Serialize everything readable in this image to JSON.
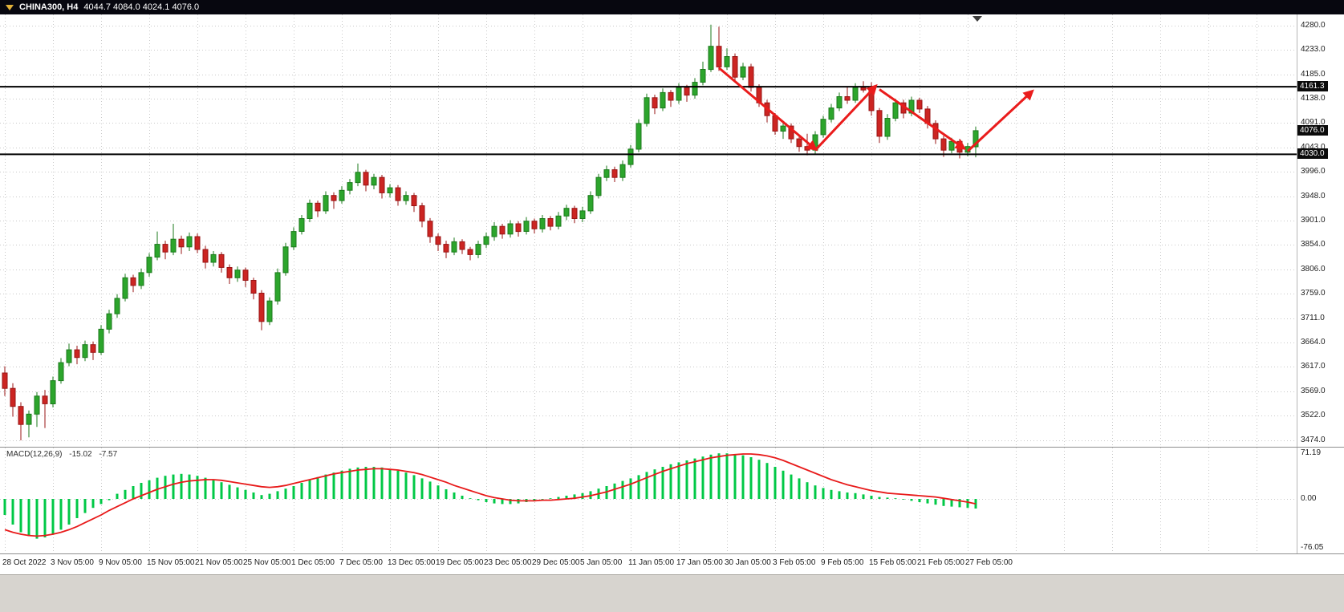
{
  "ui": {
    "titlebar": {
      "symbol": "CHINA300, H4",
      "ohlc": "4044.7 4084.0 4024.1 4076.0"
    },
    "macd": {
      "name": "MACD(12,26,9)",
      "main": "-15.02",
      "signal": "-7.57"
    }
  },
  "chart_data": {
    "type": "candlestick",
    "title": "CHINA300, H4",
    "timeframe": "H4",
    "last_candle": {
      "open": 4044.7,
      "high": 4084.0,
      "low": 4024.1,
      "close": 4076.0
    },
    "style": {
      "up": "#2ca52c",
      "up_border": "#1b7a1b",
      "down": "#cc2522",
      "down_border": "#991414",
      "grid": "#c9c9c9",
      "arrow": "#ea1c1c",
      "hline": "#000000"
    },
    "price_axis": {
      "max": 4280.0,
      "min": 3474.0,
      "ticks": [
        "4280.0",
        "4233.0",
        "4185.0",
        "4138.0",
        "4091.0",
        "4043.0",
        "3996.0",
        "3948.0",
        "3901.0",
        "3854.0",
        "3806.0",
        "3759.0",
        "3711.0",
        "3664.0",
        "3617.0",
        "3569.0",
        "3522.0",
        "3474.0"
      ]
    },
    "price_tags": [
      {
        "price": 4161.3,
        "label": "4161.3"
      },
      {
        "price": 4076.0,
        "label": "4076.0"
      },
      {
        "price": 4030.0,
        "label": "4030.0"
      }
    ],
    "hlines": [
      {
        "price": 4161.3
      },
      {
        "price": 4030.0
      }
    ],
    "trend_arrows": [
      {
        "from": {
          "i": 89,
          "price": 4198
        },
        "to": {
          "i": 101,
          "price": 4040
        }
      },
      {
        "from": {
          "i": 101,
          "price": 4038
        },
        "to": {
          "i": 108.5,
          "price": 4162
        }
      },
      {
        "from": {
          "i": 109,
          "price": 4156
        },
        "to": {
          "i": 119.5,
          "price": 4042
        }
      },
      {
        "from": {
          "i": 120,
          "price": 4036
        },
        "to": {
          "i": 128,
          "price": 4152
        }
      }
    ],
    "time_labels": [
      "28 Oct 2022",
      "3 Nov 05:00",
      "9 Nov 05:00",
      "15 Nov 05:00",
      "21 Nov 05:00",
      "25 Nov 05:00",
      "1 Dec 05:00",
      "7 Dec 05:00",
      "13 Dec 05:00",
      "19 Dec 05:00",
      "23 Dec 05:00",
      "29 Dec 05:00",
      "5 Jan 05:00",
      "11 Jan 05:00",
      "17 Jan 05:00",
      "30 Jan 05:00",
      "3 Feb 05:00",
      "9 Feb 05:00",
      "15 Feb 05:00",
      "21 Feb 05:00",
      "27 Feb 05:00"
    ],
    "candles_ohlc": [
      [
        3605,
        3618,
        3560,
        3575
      ],
      [
        3575,
        3585,
        3520,
        3540
      ],
      [
        3540,
        3548,
        3474,
        3505
      ],
      [
        3505,
        3532,
        3480,
        3525
      ],
      [
        3525,
        3568,
        3500,
        3560
      ],
      [
        3560,
        3572,
        3498,
        3545
      ],
      [
        3545,
        3598,
        3538,
        3590
      ],
      [
        3590,
        3634,
        3584,
        3625
      ],
      [
        3625,
        3662,
        3618,
        3650
      ],
      [
        3650,
        3658,
        3622,
        3635
      ],
      [
        3635,
        3668,
        3628,
        3660
      ],
      [
        3660,
        3666,
        3630,
        3645
      ],
      [
        3645,
        3698,
        3640,
        3690
      ],
      [
        3690,
        3728,
        3682,
        3720
      ],
      [
        3720,
        3758,
        3712,
        3750
      ],
      [
        3750,
        3798,
        3744,
        3790
      ],
      [
        3790,
        3796,
        3762,
        3775
      ],
      [
        3775,
        3808,
        3768,
        3800
      ],
      [
        3800,
        3838,
        3792,
        3830
      ],
      [
        3830,
        3880,
        3824,
        3855
      ],
      [
        3855,
        3862,
        3826,
        3840
      ],
      [
        3840,
        3895,
        3834,
        3865
      ],
      [
        3865,
        3872,
        3836,
        3850
      ],
      [
        3850,
        3878,
        3842,
        3870
      ],
      [
        3870,
        3876,
        3838,
        3845
      ],
      [
        3845,
        3852,
        3808,
        3820
      ],
      [
        3820,
        3842,
        3812,
        3835
      ],
      [
        3835,
        3840,
        3800,
        3810
      ],
      [
        3810,
        3816,
        3778,
        3790
      ],
      [
        3790,
        3812,
        3782,
        3805
      ],
      [
        3805,
        3810,
        3772,
        3785
      ],
      [
        3785,
        3790,
        3748,
        3760
      ],
      [
        3760,
        3766,
        3688,
        3705
      ],
      [
        3705,
        3752,
        3698,
        3745
      ],
      [
        3745,
        3808,
        3738,
        3800
      ],
      [
        3800,
        3858,
        3794,
        3850
      ],
      [
        3850,
        3888,
        3844,
        3880
      ],
      [
        3880,
        3912,
        3874,
        3905
      ],
      [
        3905,
        3942,
        3898,
        3935
      ],
      [
        3935,
        3940,
        3908,
        3920
      ],
      [
        3920,
        3958,
        3914,
        3950
      ],
      [
        3950,
        3956,
        3924,
        3940
      ],
      [
        3940,
        3968,
        3934,
        3960
      ],
      [
        3960,
        3982,
        3952,
        3975
      ],
      [
        3975,
        4012,
        3968,
        3995
      ],
      [
        3995,
        4000,
        3958,
        3970
      ],
      [
        3970,
        3992,
        3962,
        3985
      ],
      [
        3985,
        3990,
        3944,
        3955
      ],
      [
        3955,
        3972,
        3946,
        3965
      ],
      [
        3965,
        3970,
        3930,
        3940
      ],
      [
        3940,
        3958,
        3932,
        3950
      ],
      [
        3950,
        3955,
        3918,
        3930
      ],
      [
        3930,
        3936,
        3888,
        3900
      ],
      [
        3900,
        3906,
        3858,
        3870
      ],
      [
        3870,
        3876,
        3842,
        3855
      ],
      [
        3855,
        3862,
        3828,
        3840
      ],
      [
        3840,
        3868,
        3834,
        3860
      ],
      [
        3860,
        3865,
        3836,
        3845
      ],
      [
        3845,
        3850,
        3824,
        3835
      ],
      [
        3835,
        3862,
        3828,
        3855
      ],
      [
        3855,
        3878,
        3848,
        3870
      ],
      [
        3870,
        3898,
        3862,
        3890
      ],
      [
        3890,
        3895,
        3866,
        3875
      ],
      [
        3875,
        3902,
        3868,
        3895
      ],
      [
        3895,
        3900,
        3870,
        3880
      ],
      [
        3880,
        3908,
        3874,
        3900
      ],
      [
        3900,
        3905,
        3876,
        3885
      ],
      [
        3885,
        3912,
        3878,
        3905
      ],
      [
        3905,
        3910,
        3882,
        3890
      ],
      [
        3890,
        3918,
        3884,
        3910
      ],
      [
        3910,
        3932,
        3902,
        3925
      ],
      [
        3925,
        3930,
        3896,
        3905
      ],
      [
        3905,
        3928,
        3898,
        3920
      ],
      [
        3920,
        3958,
        3914,
        3950
      ],
      [
        3950,
        3992,
        3944,
        3985
      ],
      [
        3985,
        4008,
        3978,
        4000
      ],
      [
        4000,
        4006,
        3976,
        3985
      ],
      [
        3985,
        4018,
        3978,
        4010
      ],
      [
        4010,
        4048,
        4004,
        4040
      ],
      [
        4040,
        4098,
        4034,
        4090
      ],
      [
        4090,
        4148,
        4084,
        4140
      ],
      [
        4140,
        4146,
        4108,
        4120
      ],
      [
        4120,
        4158,
        4114,
        4150
      ],
      [
        4150,
        4155,
        4122,
        4135
      ],
      [
        4135,
        4168,
        4128,
        4160
      ],
      [
        4160,
        4165,
        4132,
        4145
      ],
      [
        4145,
        4178,
        4138,
        4170
      ],
      [
        4170,
        4210,
        4164,
        4195
      ],
      [
        4195,
        4282,
        4190,
        4240
      ],
      [
        4240,
        4278,
        4192,
        4200
      ],
      [
        4200,
        4236,
        4194,
        4220
      ],
      [
        4220,
        4226,
        4172,
        4180
      ],
      [
        4180,
        4208,
        4174,
        4200
      ],
      [
        4200,
        4206,
        4152,
        4160
      ],
      [
        4160,
        4166,
        4122,
        4130
      ],
      [
        4130,
        4136,
        4092,
        4105
      ],
      [
        4105,
        4110,
        4068,
        4075
      ],
      [
        4075,
        4092,
        4060,
        4085
      ],
      [
        4085,
        4090,
        4052,
        4060
      ],
      [
        4060,
        4066,
        4035,
        4045
      ],
      [
        4045,
        4070,
        4028,
        4038
      ],
      [
        4038,
        4075,
        4030,
        4068
      ],
      [
        4068,
        4105,
        4062,
        4098
      ],
      [
        4098,
        4128,
        4092,
        4120
      ],
      [
        4120,
        4150,
        4114,
        4142
      ],
      [
        4142,
        4160,
        4128,
        4135
      ],
      [
        4135,
        4168,
        4130,
        4160
      ],
      [
        4160,
        4172,
        4150,
        4155
      ],
      [
        4155,
        4170,
        4105,
        4115
      ],
      [
        4115,
        4120,
        4052,
        4065
      ],
      [
        4065,
        4108,
        4058,
        4100
      ],
      [
        4100,
        4138,
        4094,
        4130
      ],
      [
        4130,
        4136,
        4100,
        4110
      ],
      [
        4110,
        4142,
        4104,
        4135
      ],
      [
        4135,
        4140,
        4110,
        4118
      ],
      [
        4118,
        4124,
        4080,
        4090
      ],
      [
        4090,
        4096,
        4050,
        4060
      ],
      [
        4060,
        4066,
        4025,
        4038
      ],
      [
        4038,
        4062,
        4032,
        4055
      ],
      [
        4055,
        4060,
        4022,
        4034
      ],
      [
        4034,
        4052,
        4026,
        4045
      ],
      [
        4044.7,
        4084.0,
        4024.1,
        4076.0
      ]
    ],
    "macd": {
      "params": "12,26,9",
      "main_last": -15.02,
      "signal_last": -7.57,
      "axis_labels": [
        "71.19",
        "0.00",
        "-76.05"
      ],
      "hist_color": "#00c846",
      "signal_color": "#e81a1a",
      "histogram": [
        -25,
        -40,
        -52,
        -58,
        -62,
        -60,
        -55,
        -48,
        -40,
        -30,
        -22,
        -14,
        -8,
        -2,
        8,
        14,
        20,
        25,
        29,
        33,
        36,
        38,
        39,
        38,
        36,
        33,
        30,
        26,
        22,
        18,
        14,
        10,
        6,
        8,
        12,
        16,
        20,
        25,
        30,
        34,
        38,
        41,
        44,
        47,
        49,
        50,
        50,
        49,
        47,
        44,
        41,
        37,
        32,
        27,
        21,
        15,
        10,
        5,
        1,
        -2,
        -5,
        -7,
        -8,
        -8,
        -7,
        -5,
        -3,
        -1,
        1,
        3,
        5,
        7,
        9,
        12,
        16,
        20,
        24,
        28,
        32,
        37,
        42,
        46,
        50,
        54,
        57,
        60,
        63,
        66,
        69,
        71,
        71,
        70,
        68,
        65,
        61,
        56,
        50,
        44,
        38,
        32,
        26,
        21,
        17,
        14,
        12,
        10,
        9,
        7,
        5,
        3,
        2,
        1,
        -1,
        -3,
        -5,
        -7,
        -9,
        -11,
        -12,
        -13,
        -14,
        -15.02
      ],
      "signal": [
        -48,
        -52,
        -55,
        -57,
        -58,
        -57,
        -55,
        -52,
        -48,
        -43,
        -37,
        -31,
        -25,
        -18,
        -12,
        -6,
        0,
        5,
        10,
        15,
        19,
        23,
        26,
        28,
        29,
        30,
        30,
        29,
        27,
        25,
        23,
        21,
        19,
        18,
        19,
        21,
        24,
        27,
        30,
        33,
        36,
        39,
        41,
        43,
        45,
        46,
        47,
        47,
        46,
        45,
        43,
        41,
        38,
        34,
        30,
        26,
        21,
        17,
        13,
        9,
        5,
        2,
        0,
        -2,
        -3,
        -3,
        -3,
        -2,
        -2,
        -1,
        0,
        1,
        3,
        5,
        8,
        11,
        15,
        19,
        23,
        28,
        33,
        38,
        43,
        47,
        51,
        55,
        58,
        61,
        64,
        66,
        68,
        69,
        70,
        70,
        69,
        67,
        64,
        60,
        55,
        50,
        45,
        40,
        35,
        30,
        26,
        22,
        19,
        16,
        13,
        11,
        9,
        8,
        7,
        6,
        5,
        4,
        3,
        1,
        -1,
        -3,
        -5,
        -7.57
      ]
    }
  }
}
